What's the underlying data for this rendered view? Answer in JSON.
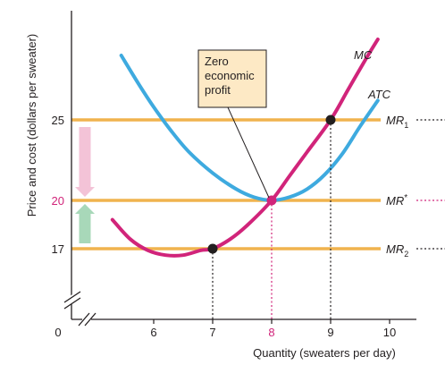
{
  "chart_data": {
    "type": "line",
    "xlabel": "Quantity (sweaters per day)",
    "ylabel": "Price and cost (dollars per sweater)",
    "x_ticks": [
      "0",
      "6",
      "7",
      "8",
      "9",
      "10"
    ],
    "y_ticks": [
      "17",
      "20",
      "25"
    ],
    "highlight_tick_color": "#d1247a",
    "xlim": [
      5,
      10.5
    ],
    "ylim": [
      13.5,
      31.5
    ],
    "axis_break": true,
    "series": [
      {
        "name": "MC",
        "color": "#d1247a",
        "x": [
          5.3,
          5.6,
          5.9,
          6.2,
          6.5,
          6.8,
          7.0,
          7.3,
          7.6,
          8.0,
          8.3,
          8.6,
          9.0,
          9.3,
          9.6,
          9.8
        ],
        "y": [
          18.8,
          17.6,
          16.9,
          16.6,
          16.6,
          16.9,
          17.0,
          17.6,
          18.5,
          20.0,
          21.5,
          23.0,
          25.0,
          26.9,
          28.8,
          30.0
        ]
      },
      {
        "name": "ATC",
        "color": "#3eaadf",
        "x": [
          5.45,
          5.75,
          6.0,
          6.3,
          6.6,
          7.0,
          7.4,
          7.7,
          8.0,
          8.3,
          8.6,
          8.9,
          9.2,
          9.5,
          9.8
        ],
        "y": [
          29.0,
          27.2,
          25.8,
          24.3,
          23.0,
          21.7,
          20.7,
          20.2,
          20.0,
          20.2,
          20.7,
          21.6,
          22.9,
          24.6,
          26.2
        ]
      }
    ],
    "horizontal_lines": [
      {
        "name": "MR",
        "sub": "1",
        "y": 25,
        "color": "#f0b34e",
        "label_color": "#231f20"
      },
      {
        "name": "MR",
        "sup": "*",
        "y": 20,
        "color": "#f0b34e",
        "label_color": "#231f20"
      },
      {
        "name": "MR",
        "sub": "2",
        "y": 17,
        "color": "#f0b34e",
        "label_color": "#231f20"
      }
    ],
    "points": [
      {
        "x": 9,
        "y": 25,
        "color": "#231f20",
        "dropline_color": "#231f20"
      },
      {
        "x": 8,
        "y": 20,
        "color": "#d1247a",
        "dropline_color": "#d1247a"
      },
      {
        "x": 7,
        "y": 17,
        "color": "#231f20",
        "dropline_color": "#231f20"
      }
    ],
    "arrows": [
      {
        "from": 25,
        "to": 20,
        "color": "#f3c3d7",
        "direction": "down"
      },
      {
        "from": 17,
        "to": 20,
        "color": "#a8d8b9",
        "direction": "up"
      }
    ],
    "annotation": {
      "lines": [
        "Zero",
        "economic",
        "profit"
      ],
      "box_fill": "#fde9c5",
      "points_to": {
        "x": 8,
        "y": 20
      }
    }
  }
}
